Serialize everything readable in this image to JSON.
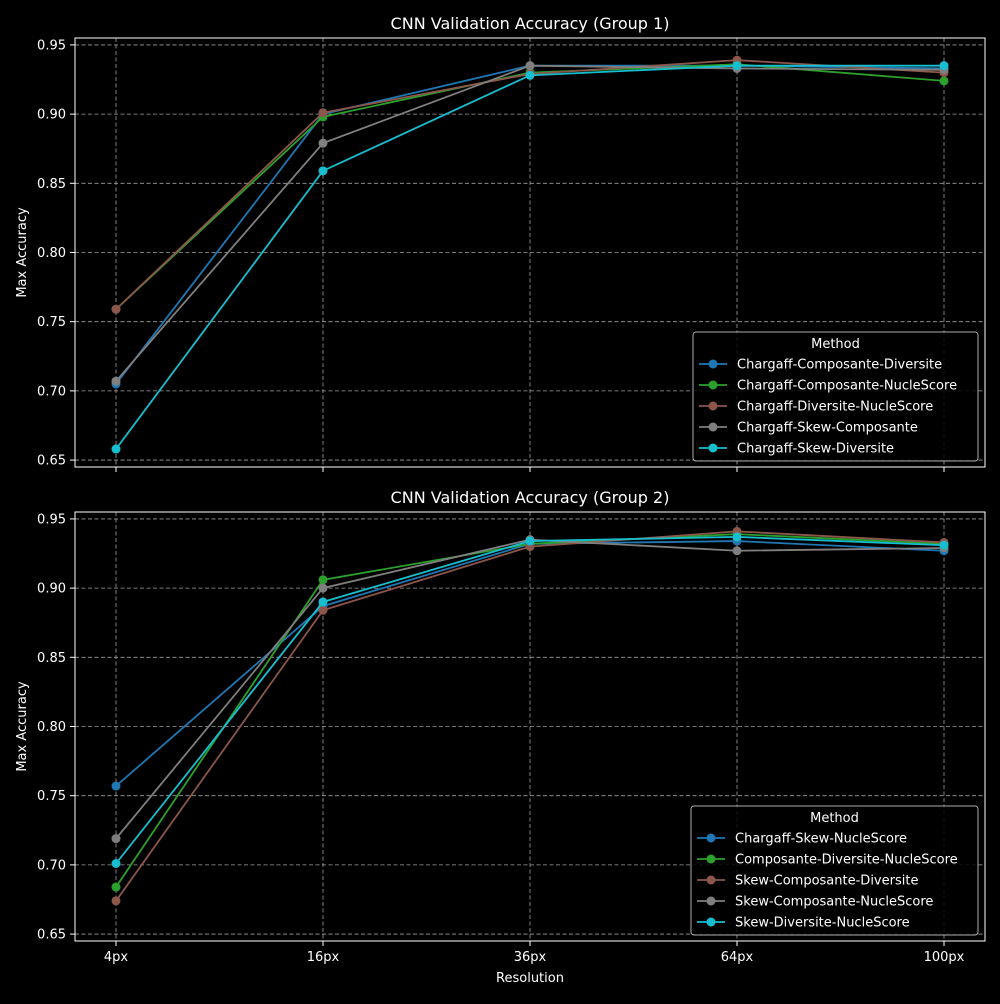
{
  "chart_data": [
    {
      "type": "line",
      "title": "CNN Validation Accuracy (Group 1)",
      "xlabel": "",
      "ylabel": "Max Accuracy",
      "categories": [
        "4px",
        "16px",
        "36px",
        "64px",
        "100px"
      ],
      "ylim": [
        0.645,
        0.955
      ],
      "yticks": [
        0.65,
        0.7,
        0.75,
        0.8,
        0.85,
        0.9,
        0.95
      ],
      "grid": true,
      "legend_title": "Method",
      "legend_position": "lower-right",
      "series": [
        {
          "name": "Chargaff-Composante-Diversite",
          "color": "#1f77b4",
          "values": [
            0.705,
            0.9,
            0.935,
            0.935,
            0.933
          ]
        },
        {
          "name": "Chargaff-Composante-NucleScore",
          "color": "#2ca02c",
          "values": [
            0.759,
            0.898,
            0.93,
            0.936,
            0.924
          ]
        },
        {
          "name": "Chargaff-Diversite-NucleScore",
          "color": "#8c564b",
          "values": [
            0.759,
            0.901,
            0.929,
            0.939,
            0.93
          ]
        },
        {
          "name": "Chargaff-Skew-Composante",
          "color": "#7f7f7f",
          "values": [
            0.707,
            0.879,
            0.935,
            0.933,
            0.932
          ]
        },
        {
          "name": "Chargaff-Skew-Diversite",
          "color": "#17becf",
          "values": [
            0.658,
            0.859,
            0.928,
            0.935,
            0.935
          ]
        }
      ]
    },
    {
      "type": "line",
      "title": "CNN Validation Accuracy (Group 2)",
      "xlabel": "Resolution",
      "ylabel": "Max Accuracy",
      "categories": [
        "4px",
        "16px",
        "36px",
        "64px",
        "100px"
      ],
      "ylim": [
        0.645,
        0.955
      ],
      "yticks": [
        0.65,
        0.7,
        0.75,
        0.8,
        0.85,
        0.9,
        0.95
      ],
      "grid": true,
      "legend_title": "Method",
      "legend_position": "lower-right",
      "series": [
        {
          "name": "Chargaff-Skew-NucleScore",
          "color": "#1f77b4",
          "values": [
            0.757,
            0.887,
            0.932,
            0.934,
            0.927
          ]
        },
        {
          "name": "Composante-Diversite-NucleScore",
          "color": "#2ca02c",
          "values": [
            0.684,
            0.906,
            0.932,
            0.939,
            0.932
          ]
        },
        {
          "name": "Skew-Composante-Diversite",
          "color": "#8c564b",
          "values": [
            0.674,
            0.884,
            0.93,
            0.941,
            0.933
          ]
        },
        {
          "name": "Skew-Composante-NucleScore",
          "color": "#7f7f7f",
          "values": [
            0.719,
            0.9,
            0.935,
            0.927,
            0.929
          ]
        },
        {
          "name": "Skew-Diversite-NucleScore",
          "color": "#17becf",
          "values": [
            0.701,
            0.89,
            0.934,
            0.937,
            0.931
          ]
        }
      ]
    }
  ]
}
